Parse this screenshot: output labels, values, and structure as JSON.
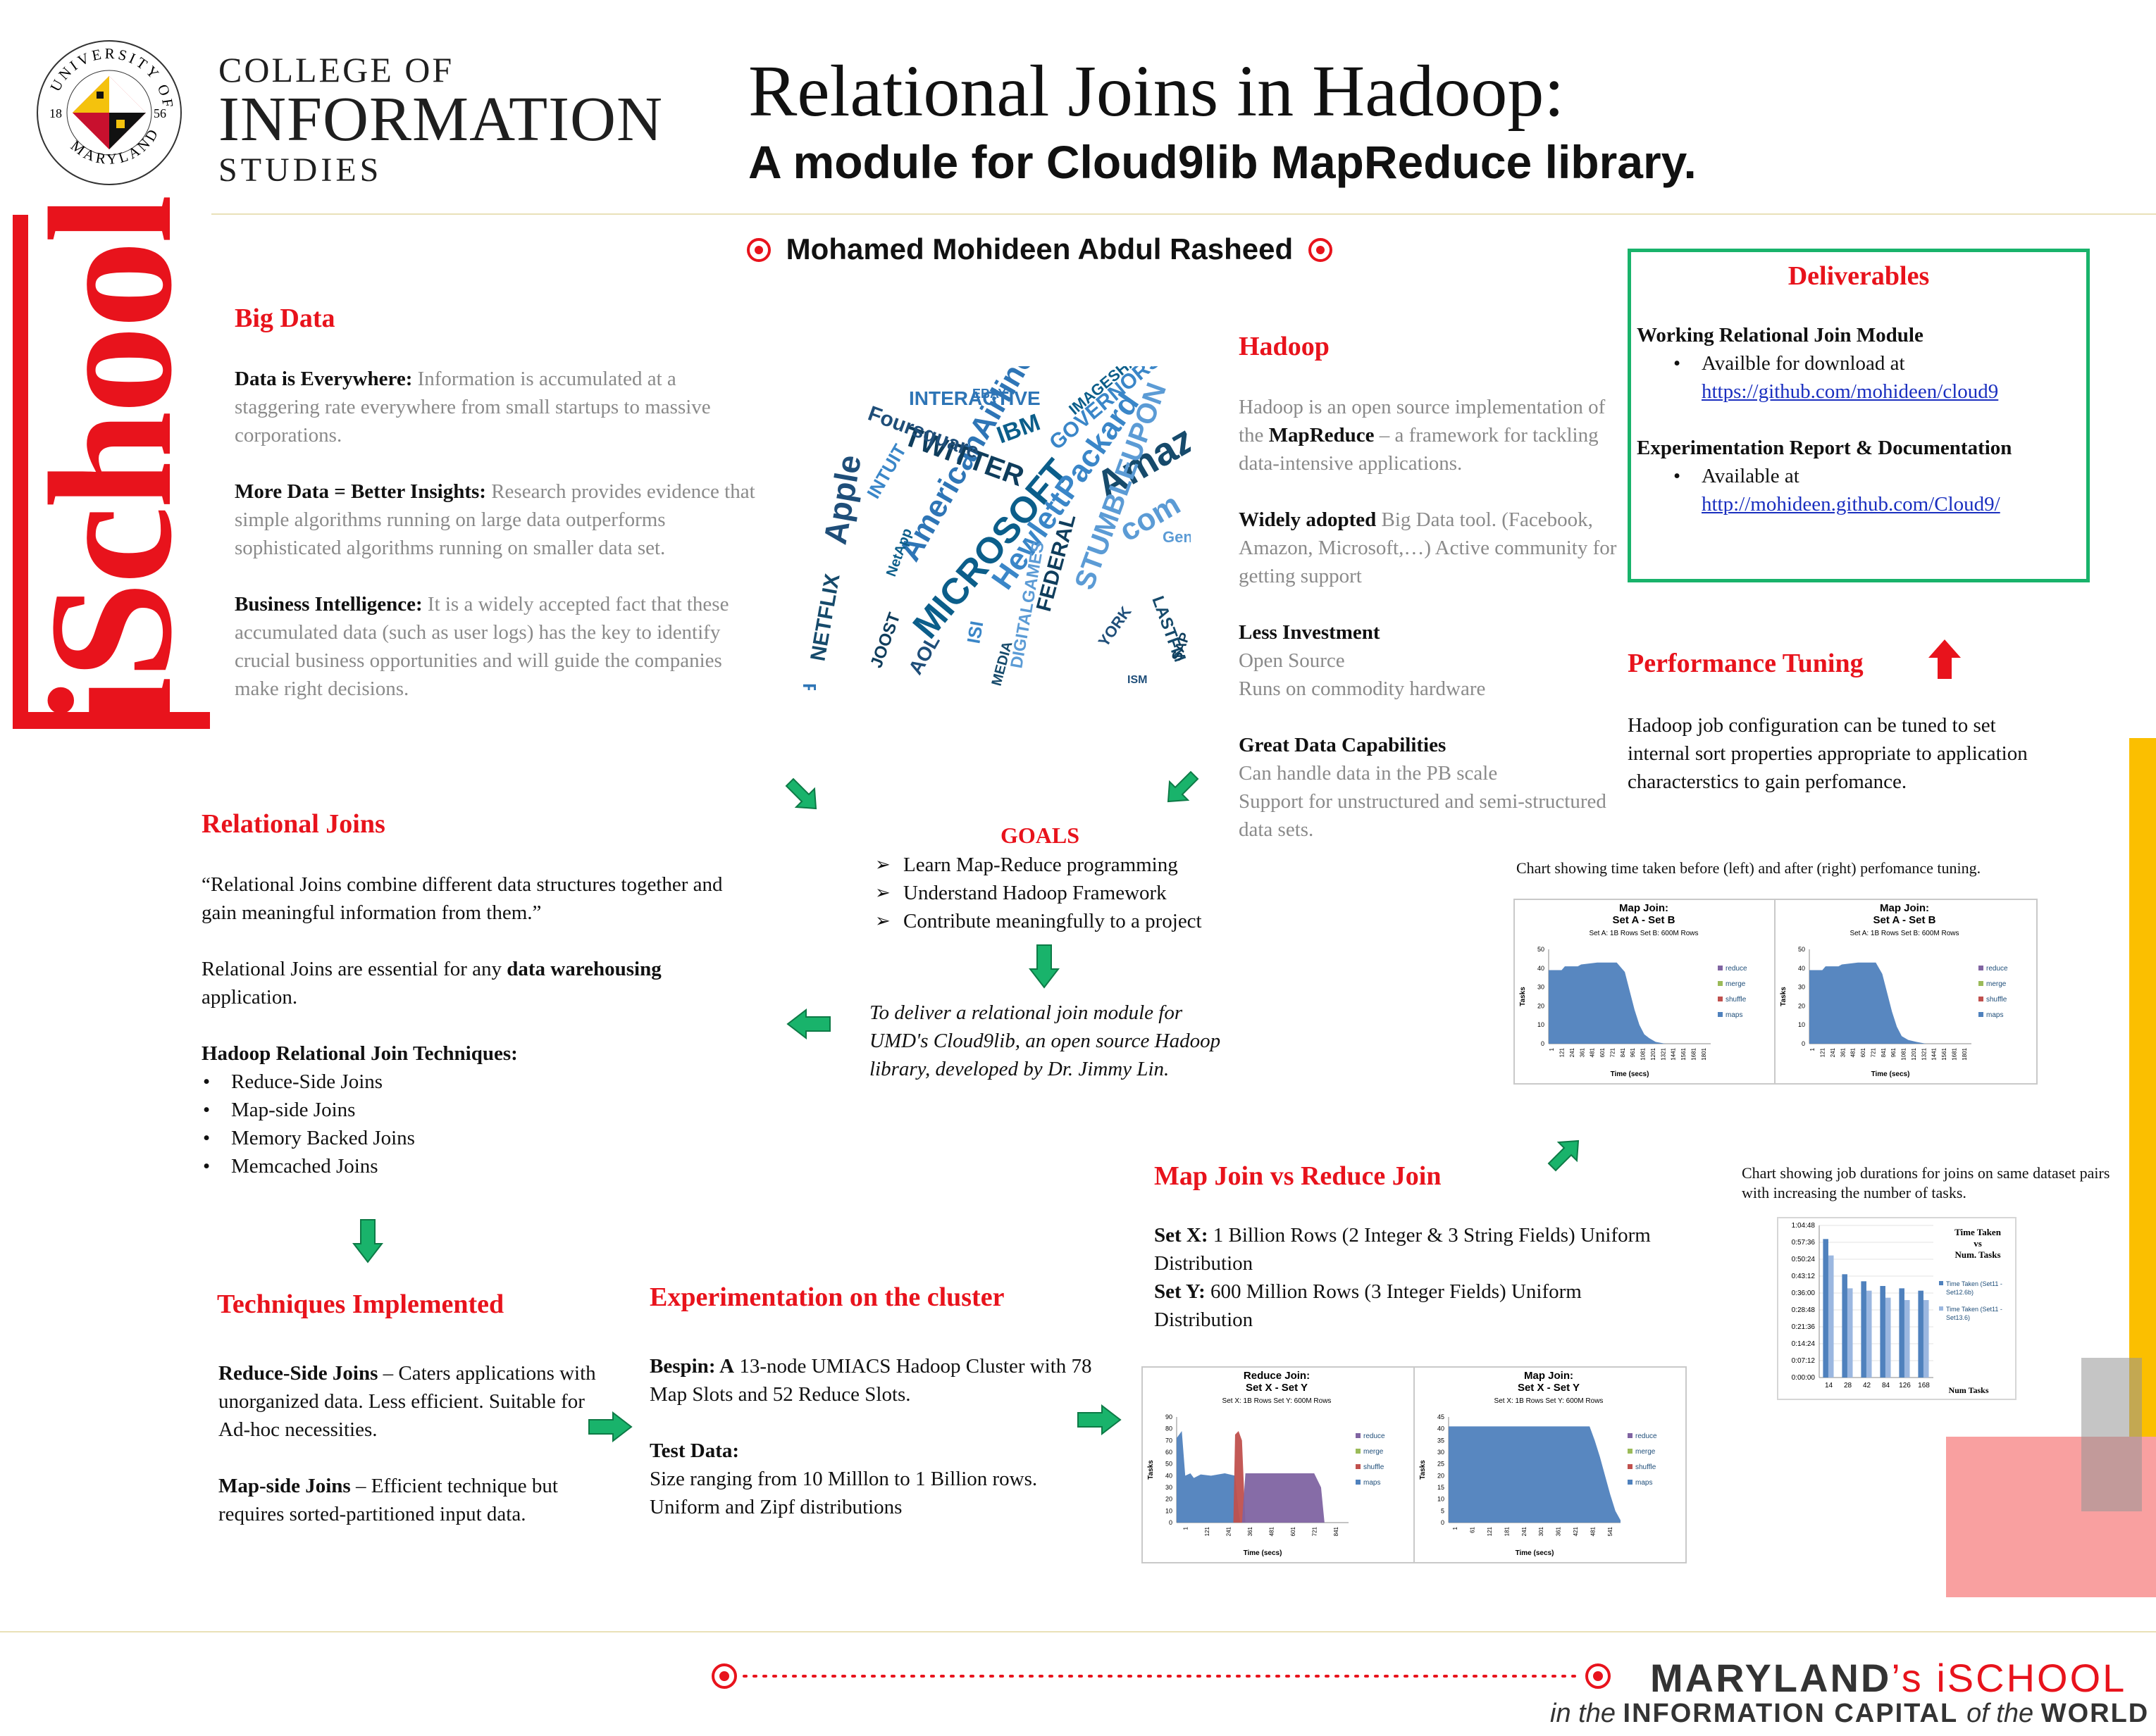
{
  "header": {
    "college_line1": "COLLEGE OF",
    "college_line2": "INFORMATION",
    "college_line3": "STUDIES",
    "seal_text_top": "UNIVERSITY OF",
    "seal_text_bottom": "MARYLAND",
    "seal_year_left": "18",
    "seal_year_right": "56",
    "ischool_vertical": "iSchool",
    "title": "Relational Joins in Hadoop:",
    "subtitle": "A module for Cloud9lib MapReduce library.",
    "author": "Mohamed Mohideen Abdul Rasheed"
  },
  "big_data": {
    "heading": "Big Data",
    "items": [
      {
        "lead": "Data is Everywhere:",
        "text": "Information is accumulated at a staggering rate everywhere from small startups to massive corporations."
      },
      {
        "lead": "More Data = Better Insights:",
        "text": "Research provides evidence that simple algorithms running on large data outperforms sophisticated algorithms running on smaller data set."
      },
      {
        "lead": "Business Intelligence:",
        "text": "It is a widely accepted fact that these accumulated data (such as user logs) has the key to identify crucial business opportunities and will guide the companies make right decisions."
      }
    ]
  },
  "elephant_words": [
    "Apple",
    "AmericanAirlines",
    "MICROSOFT",
    "HewlettPackard",
    "Amazon",
    "com",
    "TWITTER",
    "Foursquare",
    "INTERACTIVE",
    "IBM",
    "GOVERNORS",
    "NETFLIX",
    "STUMBLEUPON",
    "FEDERAL",
    "AOL",
    "FOX",
    "IMAGESHACK",
    "INTUIT",
    "LASTFM",
    "Genvara",
    "SAP",
    "YORK",
    "EBAY",
    "NetApp",
    "ISI",
    "MEDIA",
    "DIGITALGAMES",
    "JOOST",
    "ISM"
  ],
  "hadoop": {
    "heading": "Hadoop",
    "intro_pre": "Hadoop is an open source implementation of the ",
    "intro_bold": "MapReduce",
    "intro_post": " – a framework for tackling data-intensive applications.",
    "items": [
      {
        "lead": "Widely adopted",
        "text": " Big Data tool. (Facebook, Amazon, Microsoft,…) Active community for getting support"
      },
      {
        "lead": "Less Investment",
        "text": "Open Source\nRuns on commodity hardware"
      },
      {
        "lead": "Great Data Capabilities",
        "text": "Can handle data in the PB scale\nSupport for unstructured and semi-structured data sets."
      }
    ]
  },
  "deliverables": {
    "heading": "Deliverables",
    "item1_title": "Working Relational Join Module",
    "item1_bullet": "Availble for download at",
    "item1_link": "https://github.com/mohideen/cloud9",
    "item2_title": "Experimentation Report & Documentation",
    "item2_bullet": "Available at",
    "item2_link": "http://mohideen.github.com/Cloud9/"
  },
  "performance": {
    "heading": "Performance Tuning",
    "text": "Hadoop job configuration can be tuned to set internal sort properties appropriate to application characterstics to gain perfomance.",
    "chart_caption": "Chart showing time taken before (left) and after (right) perfomance tuning."
  },
  "goals": {
    "heading": "GOALS",
    "items": [
      "Learn Map-Reduce programming",
      "Understand Hadoop Framework",
      "Contribute meaningfully to a project"
    ],
    "mission": "To deliver a relational join module for UMD's Cloud9lib, an open source Hadoop library, developed by Dr. Jimmy Lin."
  },
  "relational_joins": {
    "heading": "Relational Joins",
    "quote": "“Relational Joins combine different data structures together and gain meaningful information from them.”",
    "essential_pre": "Relational Joins are essential for any ",
    "essential_bold": "data warehousing",
    "essential_post": " application.",
    "techniques_title": "Hadoop Relational Join Techniques:",
    "techniques": [
      "Reduce-Side Joins",
      "Map-side Joins",
      "Memory Backed Joins",
      "Memcached Joins"
    ]
  },
  "techniques_impl": {
    "heading": "Techniques Implemented",
    "item1_lead": "Reduce-Side Joins",
    "item1_text": " – Caters applications with unorganized data. Less efficient. Suitable for Ad-hoc necessities.",
    "item2_lead": "Map-side Joins",
    "item2_text": " – Efficient technique but requires sorted-partitioned input data."
  },
  "experimentation": {
    "heading": "Experimentation on the cluster",
    "bespin_lead": "Bespin: A",
    "bespin_text": " 13-node UMIACS Hadoop Cluster with 78 Map Slots and 52 Reduce Slots.",
    "testdata_lead": "Test Data:",
    "testdata_text": "Size ranging from 10 Milllon to 1 Billion rows. Uniform and Zipf distributions"
  },
  "map_vs_reduce": {
    "heading": "Map Join vs Reduce Join",
    "setx_lead": "Set X:",
    "setx_text": " 1 Billion Rows (2 Integer & 3 String Fields) Uniform Distribution",
    "sety_lead": "Set Y:",
    "sety_text": " 600 Million Rows (3 Integer Fields) Uniform Distribution"
  },
  "job_duration_caption": "Chart showing job durations for joins on same dataset pairs with increasing the number of tasks.",
  "footer": {
    "brand_pre": "MARYLAND",
    "brand_apos": "’s",
    "brand_i": "i",
    "brand_school": "SCHOOL",
    "tag_in": "in the ",
    "tag_mid": "INFORMATION CAPITAL ",
    "tag_of": "of the ",
    "tag_world": "WORLD"
  },
  "colors": {
    "accent_red": "#e8131c",
    "green": "#19b36b",
    "yellow": "#fbbf00",
    "pink": "#f9a0a0",
    "chart_blue": "#4f81bd",
    "chart_purple": "#8064a2",
    "chart_red": "#c0504d",
    "chart_light": "#9bb7e0"
  },
  "chart_data": [
    {
      "type": "area",
      "title": "Map Join:\nSet A - Set B",
      "subtitle": "Set A: 1B Rows Set B: 600M Rows",
      "xlabel": "Time (secs)",
      "ylabel": "Tasks",
      "ylim": [
        0,
        50
      ],
      "yticks": [
        0,
        10,
        20,
        30,
        40,
        50
      ],
      "xticks": [
        "1",
        "121",
        "241",
        "361",
        "481",
        "601",
        "721",
        "841",
        "961",
        "1081",
        "1201",
        "1321",
        "1441",
        "1561",
        "1681",
        "1801"
      ],
      "legend": [
        "reduce",
        "merge",
        "shuffle",
        "maps"
      ],
      "series": [
        {
          "name": "maps",
          "x": [
            0,
            0.08,
            0.1,
            0.18,
            0.2,
            0.3,
            0.42,
            0.47,
            0.5,
            0.53,
            0.56,
            0.59,
            0.62,
            0.66,
            0.72,
            1.0
          ],
          "values": [
            39,
            39,
            41,
            41,
            42,
            43,
            43,
            38,
            28,
            18,
            10,
            5,
            3,
            1,
            0,
            0
          ]
        }
      ]
    },
    {
      "type": "area",
      "title": "Map Join:\nSet A - Set B",
      "subtitle": "Set A: 1B Rows Set B: 600M Rows",
      "xlabel": "Time (secs)",
      "ylabel": "Tasks",
      "ylim": [
        0,
        50
      ],
      "yticks": [
        0,
        10,
        20,
        30,
        40,
        50
      ],
      "xticks": [
        "1",
        "121",
        "241",
        "361",
        "481",
        "601",
        "721",
        "841",
        "961",
        "1081",
        "1201",
        "1321",
        "1441",
        "1561",
        "1681",
        "1801"
      ],
      "legend": [
        "reduce",
        "merge",
        "shuffle",
        "maps"
      ],
      "series": [
        {
          "name": "maps",
          "x": [
            0,
            0.08,
            0.1,
            0.18,
            0.2,
            0.3,
            0.41,
            0.45,
            0.48,
            0.51,
            0.54,
            0.57,
            0.61,
            0.66,
            0.72,
            1.0
          ],
          "values": [
            39,
            39,
            41,
            41,
            42,
            43,
            43,
            37,
            27,
            17,
            9,
            4,
            2,
            1,
            0,
            0
          ]
        }
      ]
    },
    {
      "type": "bar",
      "title": "Time Taken\nvs\nNum. Tasks",
      "xlabel": "Num Tasks",
      "categories": [
        "14",
        "28",
        "42",
        "84",
        "126",
        "168"
      ],
      "yticks": [
        "0:00:00",
        "0:07:12",
        "0:14:24",
        "0:21:36",
        "0:28:48",
        "0:36:00",
        "0:43:12",
        "0:50:24",
        "0:57:36",
        "1:04:48"
      ],
      "ylim": [
        0,
        64.8
      ],
      "series": [
        {
          "name": "Time Taken (Set11 - Set12.6b)",
          "values": [
            59,
            44,
            41,
            39,
            38,
            37
          ]
        },
        {
          "name": "Time Taken (Set11 - Set13.6)",
          "values": [
            52,
            38,
            37,
            34,
            33,
            33
          ]
        }
      ]
    },
    {
      "type": "area",
      "title": "Reduce Join:\nSet X - Set Y",
      "subtitle": "Set X: 1B Rows Set Y: 600M Rows",
      "xlabel": "Time (secs)",
      "ylabel": "Tasks",
      "ylim": [
        0,
        90
      ],
      "yticks": [
        0,
        10,
        20,
        30,
        40,
        50,
        60,
        70,
        80,
        90
      ],
      "xticks": [
        "1",
        "121",
        "241",
        "361",
        "481",
        "601",
        "721",
        "841"
      ],
      "legend": [
        "reduce",
        "merge",
        "shuffle",
        "maps"
      ],
      "series": [
        {
          "name": "maps",
          "x": [
            0,
            0.03,
            0.05,
            0.08,
            0.1,
            0.14,
            0.2,
            0.28,
            0.34,
            0.36,
            0.37,
            1.0
          ],
          "values": [
            72,
            78,
            40,
            42,
            38,
            41,
            40,
            42,
            40,
            10,
            0,
            0
          ]
        },
        {
          "name": "shuffle",
          "x": [
            0.33,
            0.34,
            0.36,
            0.38,
            0.4,
            1.0
          ],
          "values": [
            0,
            75,
            78,
            70,
            0,
            0
          ]
        },
        {
          "name": "reduce",
          "x": [
            0,
            0.38,
            0.4,
            0.5,
            0.8,
            0.84,
            0.86,
            1.0
          ],
          "values": [
            0,
            0,
            42,
            42,
            42,
            30,
            0,
            0
          ]
        }
      ]
    },
    {
      "type": "area",
      "title": "Map Join:\nSet X - Set Y",
      "subtitle": "Set X: 1B Rows Set Y: 600M Rows",
      "xlabel": "Time (secs)",
      "ylabel": "Tasks",
      "ylim": [
        0,
        45
      ],
      "yticks": [
        0,
        5,
        10,
        15,
        20,
        25,
        30,
        35,
        40,
        45
      ],
      "xticks": [
        "1",
        "61",
        "121",
        "181",
        "241",
        "301",
        "361",
        "421",
        "481",
        "541"
      ],
      "legend": [
        "reduce",
        "merge",
        "shuffle",
        "maps"
      ],
      "series": [
        {
          "name": "maps",
          "x": [
            0,
            0.02,
            0.82,
            0.85,
            0.88,
            0.91,
            0.94,
            0.97,
            1.0
          ],
          "values": [
            41,
            41,
            41,
            35,
            28,
            20,
            12,
            5,
            1
          ]
        }
      ]
    }
  ]
}
